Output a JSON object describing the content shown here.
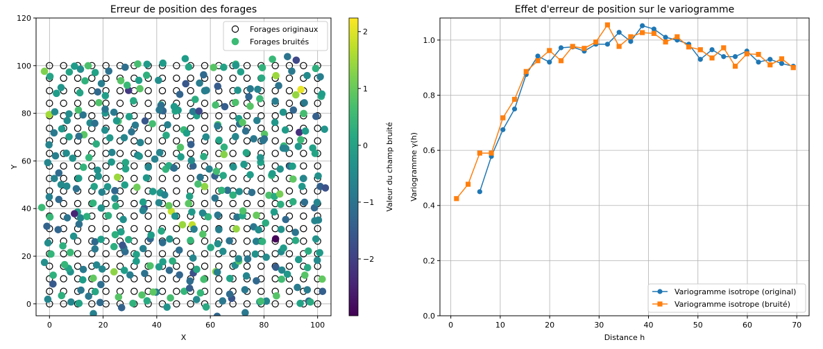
{
  "chart_data": [
    {
      "type": "scatter",
      "title": "Erreur de position des forages",
      "xlabel": "X",
      "ylabel": "Y",
      "xlim": [
        -5,
        105
      ],
      "ylim": [
        -5,
        120
      ],
      "xticks": [
        0,
        20,
        40,
        60,
        80,
        100
      ],
      "yticks": [
        0,
        20,
        40,
        60,
        80,
        100,
        120
      ],
      "grid": true,
      "legend_placement": "top-right",
      "series": [
        {
          "name": "Forages originaux",
          "marker": "open-circle",
          "color": "#000000",
          "grid_x": [
            0,
            5.26,
            10.53,
            15.79,
            21.05,
            26.32,
            31.58,
            36.84,
            42.11,
            47.37,
            52.63,
            57.89,
            63.16,
            68.42,
            73.68,
            78.95,
            84.21,
            89.47,
            94.74,
            100
          ],
          "grid_y": [
            0,
            5.26,
            10.53,
            15.79,
            21.05,
            26.32,
            31.58,
            36.84,
            42.11,
            47.37,
            52.63,
            57.89,
            63.16,
            68.42,
            73.68,
            78.95,
            84.21,
            89.47,
            94.74,
            100
          ]
        },
        {
          "name": "Forages bruités",
          "marker": "filled-circle",
          "colormap": "viridis",
          "legend_color": "#3bbb75"
        }
      ],
      "colorbar": {
        "label": "Valeur du champ bruité",
        "range": [
          -3.0,
          2.24
        ],
        "ticks": [
          -2,
          -1,
          0,
          1,
          2
        ]
      }
    },
    {
      "type": "line",
      "title": "Effet d'erreur de position sur le variogramme",
      "xlabel": "Distance h",
      "ylabel": "Variogramme γ(h)",
      "xlim": [
        -2.2,
        72.5
      ],
      "ylim": [
        0,
        1.08
      ],
      "xticks": [
        0,
        10,
        20,
        30,
        40,
        50,
        60,
        70
      ],
      "yticks": [
        0.0,
        0.2,
        0.4,
        0.6,
        0.8,
        1.0
      ],
      "grid": true,
      "legend_placement": "bottom-right",
      "x": [
        1.15,
        3.5,
        5.85,
        8.2,
        10.55,
        12.9,
        15.25,
        17.6,
        19.95,
        22.3,
        24.65,
        27.0,
        29.35,
        31.7,
        34.05,
        36.4,
        38.75,
        41.1,
        43.45,
        45.8,
        48.15,
        50.5,
        52.85,
        55.2,
        57.55,
        59.9,
        62.25,
        64.6,
        66.95,
        69.3
      ],
      "series": [
        {
          "name": "Variogramme isotrope (original)",
          "color": "#1f77b4",
          "marker": "circle",
          "values": [
            null,
            null,
            0.45,
            0.578,
            0.675,
            0.75,
            0.875,
            0.942,
            0.92,
            0.972,
            0.975,
            0.96,
            0.985,
            0.985,
            1.028,
            0.995,
            1.052,
            1.04,
            1.01,
            1.0,
            0.985,
            0.93,
            0.965,
            0.94,
            0.94,
            0.96,
            0.92,
            0.93,
            0.915,
            0.905
          ]
        },
        {
          "name": "Variogramme isotrope (bruité)",
          "color": "#ff7f0e",
          "marker": "square",
          "values": [
            0.425,
            0.477,
            0.59,
            0.59,
            0.718,
            0.785,
            0.886,
            0.925,
            0.962,
            0.925,
            0.977,
            0.97,
            0.993,
            1.055,
            0.977,
            1.012,
            1.027,
            1.024,
            0.993,
            1.012,
            0.975,
            0.965,
            0.935,
            0.972,
            0.905,
            0.95,
            0.948,
            0.91,
            0.932,
            0.9
          ]
        }
      ]
    }
  ]
}
